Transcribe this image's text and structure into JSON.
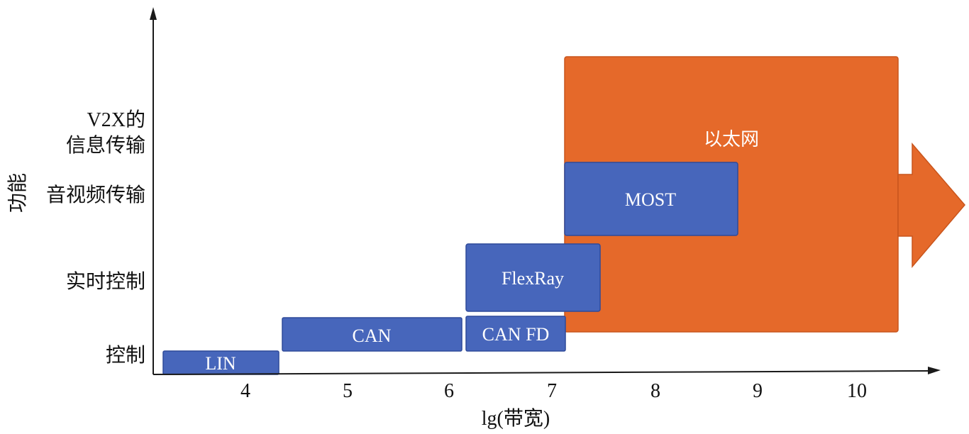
{
  "axes": {
    "x_label": "lg(带宽)",
    "y_label": "功能",
    "x_ticks": [
      "4",
      "5",
      "6",
      "7",
      "8",
      "9",
      "10"
    ],
    "y_categories": [
      {
        "line1": "控制",
        "line2": ""
      },
      {
        "line1": "实时控制",
        "line2": ""
      },
      {
        "line1": "音视频传输",
        "line2": ""
      },
      {
        "line1": "V2X的",
        "line2": "信息传输"
      }
    ]
  },
  "bands": [
    {
      "label": "LIN",
      "x_from": 3.1,
      "x_to": 4.3,
      "color": "#4766bb"
    },
    {
      "label": "CAN",
      "x_from": 4.35,
      "x_to": 6.15,
      "color": "#4766bb"
    },
    {
      "label": "CAN FD",
      "x_from": 6.2,
      "x_to": 7.1,
      "color": "#4766bb"
    },
    {
      "label": "FlexRay",
      "x_from": 6.2,
      "x_to": 7.45,
      "color": "#4766bb"
    },
    {
      "label": "MOST",
      "x_from": 7.1,
      "x_to": 8.8,
      "color": "#4766bb"
    },
    {
      "label": "以太网",
      "x_from": 7.1,
      "x_to": 10.4,
      "color": "#e5692a"
    }
  ],
  "colors": {
    "axis": "#1a1a1a",
    "box_blue": "#4766bb",
    "box_blue_border": "#2f4a99",
    "ethernet": "#e5692a",
    "ethernet_border": "#c9551c",
    "box_text": "#ffffff"
  }
}
